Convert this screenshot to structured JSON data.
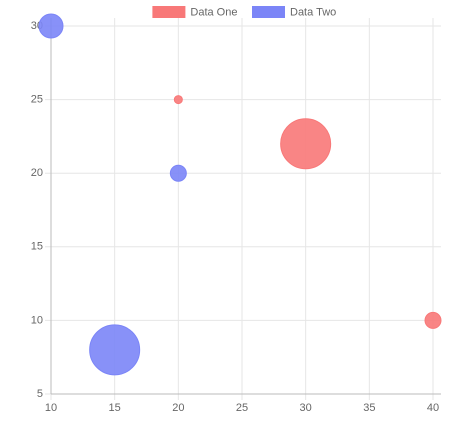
{
  "chart_data": {
    "type": "bubble",
    "series": [
      {
        "name": "Data One",
        "color": "#f87878",
        "x": [
          20,
          30,
          40
        ],
        "values": [
          25,
          22,
          10
        ],
        "r": [
          4,
          25,
          8
        ]
      },
      {
        "name": "Data Two",
        "color": "#7b85f7",
        "x": [
          10,
          20,
          15
        ],
        "values": [
          30,
          20,
          8
        ],
        "r": [
          12,
          8,
          25
        ]
      }
    ],
    "xlim": [
      10,
      40
    ],
    "xticks": [
      10,
      15,
      20,
      25,
      30,
      35,
      40
    ],
    "ylim": [
      5,
      30
    ],
    "yticks": [
      5,
      10,
      15,
      20,
      25,
      30
    ],
    "grid": true,
    "legend": "top"
  }
}
